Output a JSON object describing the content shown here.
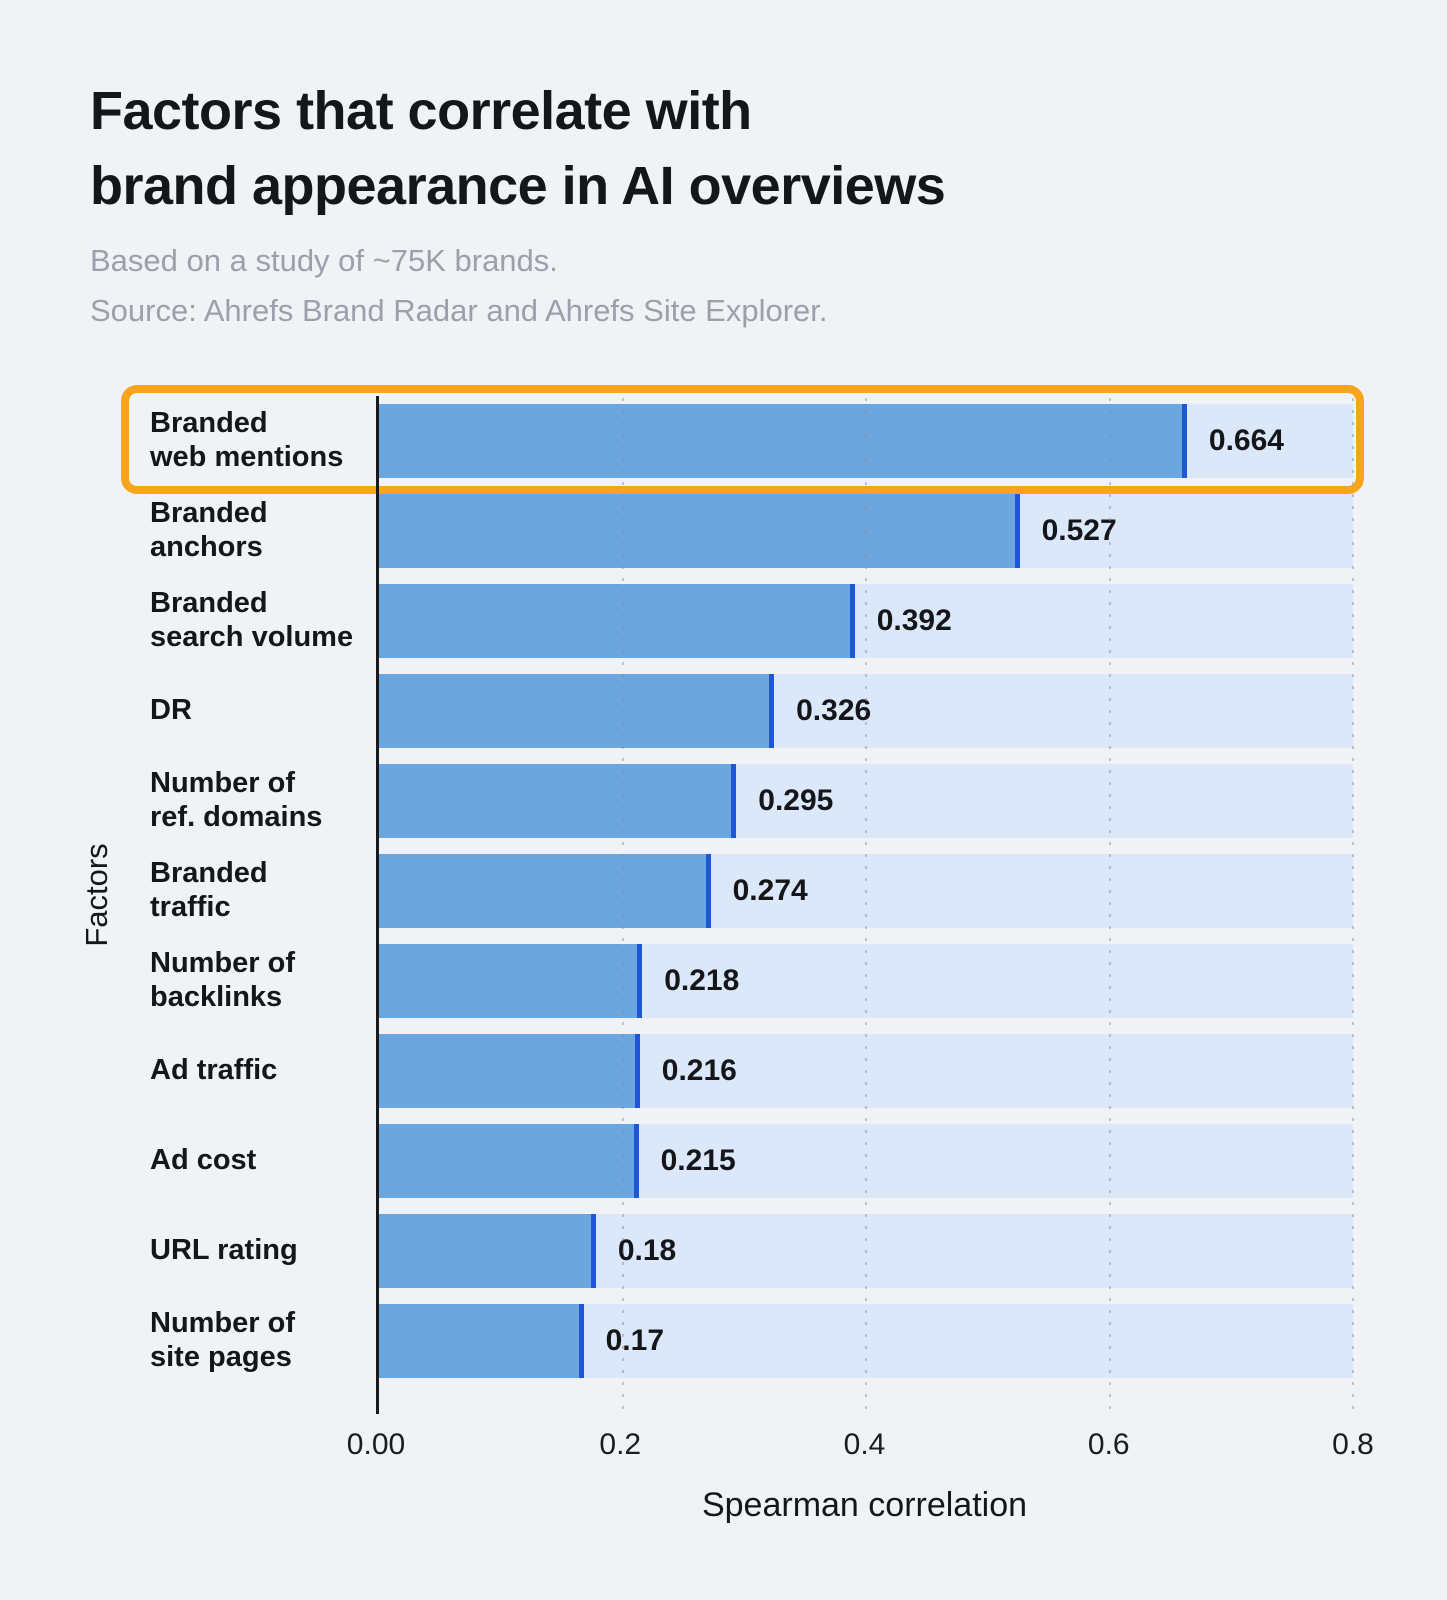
{
  "header": {
    "title": "Factors that correlate with\nbrand appearance in AI overviews",
    "subtitle": "Based on a study of ~75K brands.\nSource: Ahrefs Brand Radar and Ahrefs Site Explorer."
  },
  "chart_data": {
    "type": "bar",
    "orientation": "horizontal",
    "categories": [
      "Branded\nweb mentions",
      "Branded\nanchors",
      "Branded\nsearch volume",
      "DR",
      "Number of\nref. domains",
      "Branded\ntraffic",
      "Number of\nbacklinks",
      "Ad traffic",
      "Ad cost",
      "URL rating",
      "Number of\nsite pages"
    ],
    "values": [
      0.664,
      0.527,
      0.392,
      0.326,
      0.295,
      0.274,
      0.218,
      0.216,
      0.215,
      0.18,
      0.17
    ],
    "value_labels": [
      "0.664",
      "0.527",
      "0.392",
      "0.326",
      "0.295",
      "0.274",
      "0.218",
      "0.216",
      "0.215",
      "0.18",
      "0.17"
    ],
    "xlabel": "Spearman correlation",
    "ylabel": "Factors",
    "xlim": [
      0,
      0.8
    ],
    "xticks": [
      "0.00",
      "0.2",
      "0.4",
      "0.6",
      "0.8"
    ],
    "xtick_values": [
      0,
      0.2,
      0.4,
      0.6,
      0.8
    ],
    "grid": "dotted-vertical",
    "legend": "none",
    "highlight_index": 0,
    "colors": {
      "background": "#F0F2F5",
      "bar_fill": "#6BA6DE",
      "bar_cap": "#1E56D6",
      "bar_track": "#DBE8FA",
      "highlight_outline": "#F7A51C",
      "title_text": "#14161A",
      "subtitle_text": "#9AA1AB",
      "gridline": "#7E8BA0"
    }
  }
}
